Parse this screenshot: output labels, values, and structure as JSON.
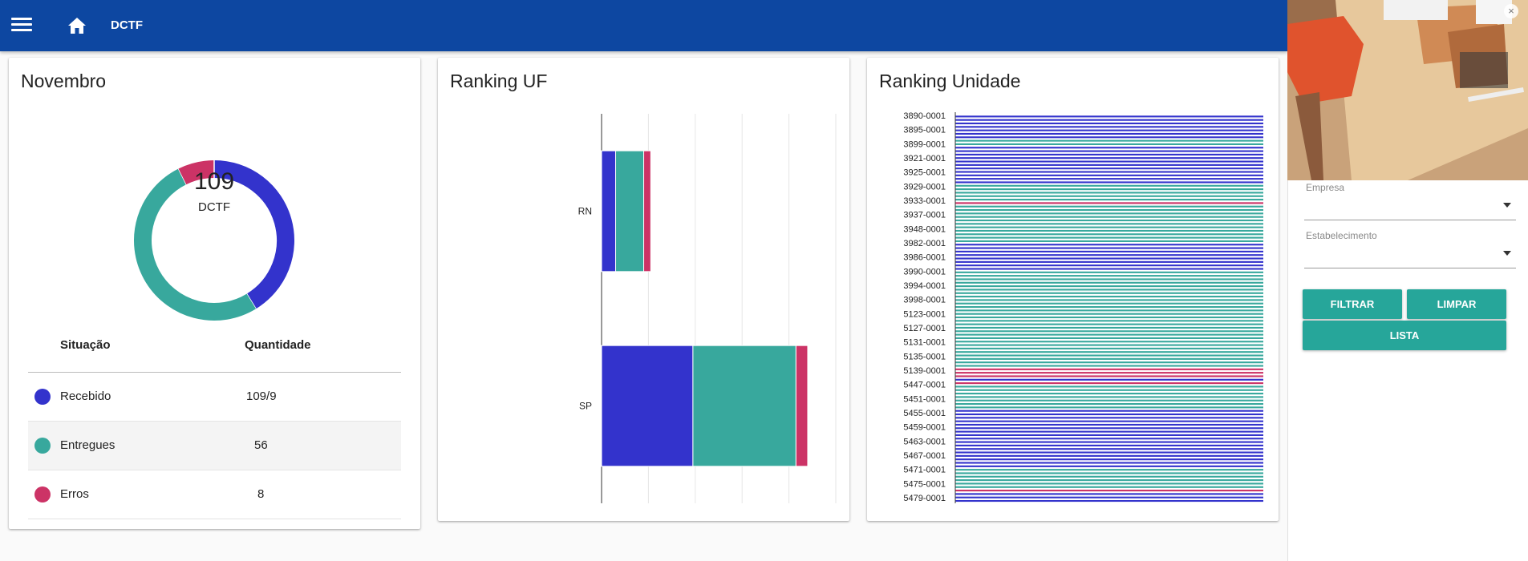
{
  "header": {
    "title": "DCTF",
    "menu_icon": "menu-icon",
    "home_icon": "home-icon"
  },
  "card_month": {
    "title": "Novembro",
    "donut": {
      "center_value": "109",
      "center_label": "DCTF"
    },
    "table": {
      "headers": [
        "Situação",
        "Quantidade"
      ],
      "rows": [
        {
          "label": "Recebido",
          "value": "109/9",
          "color": "#3333cc"
        },
        {
          "label": "Entregues",
          "value": "56",
          "color": "#38a89d"
        },
        {
          "label": "Erros",
          "value": "8",
          "color": "#cc3366"
        }
      ]
    }
  },
  "card_uf": {
    "title": "Ranking UF"
  },
  "card_unidade": {
    "title": "Ranking Unidade"
  },
  "colors": {
    "recebido": "#3333cc",
    "entregues": "#38a89d",
    "erros": "#cc3366",
    "appbar": "#0d47a1",
    "button": "#26a69a"
  },
  "chart_data": [
    {
      "type": "pie",
      "title": "Novembro",
      "categories": [
        "Recebido",
        "Entregues",
        "Erros"
      ],
      "values": [
        45,
        56,
        8
      ],
      "center_text": "109"
    },
    {
      "type": "bar",
      "title": "Ranking UF",
      "orientation": "horizontal",
      "stacked": true,
      "categories": [
        "RN",
        "SP"
      ],
      "series": [
        {
          "name": "Recebido",
          "values": [
            3,
            19.5
          ]
        },
        {
          "name": "Entregues",
          "values": [
            6,
            22
          ]
        },
        {
          "name": "Erros",
          "values": [
            1.5,
            2.5
          ]
        }
      ],
      "xlim": [
        0,
        50
      ],
      "grid": true
    },
    {
      "type": "bar",
      "title": "Ranking Unidade",
      "orientation": "horizontal",
      "stacked": true,
      "tick_labels": [
        "3890-0001",
        "3895-0001",
        "3899-0001",
        "3921-0001",
        "3925-0001",
        "3929-0001",
        "3933-0001",
        "3937-0001",
        "3948-0001",
        "3982-0001",
        "3986-0001",
        "3990-0001",
        "3994-0001",
        "3998-0001",
        "5123-0001",
        "5127-0001",
        "5131-0001",
        "5135-0001",
        "5139-0001",
        "5447-0001",
        "5451-0001",
        "5455-0001",
        "5459-0001",
        "5463-0001",
        "5467-0001",
        "5471-0001",
        "5475-0001",
        "5479-0001"
      ],
      "rows": [
        {
          "status": "Recebido"
        },
        {
          "status": "Recebido"
        },
        {
          "status": "Recebido"
        },
        {
          "status": "Recebido"
        },
        {
          "status": "Recebido"
        },
        {
          "status": "Recebido"
        },
        {
          "status": "Recebido"
        },
        {
          "status": "Entregues"
        },
        {
          "status": "Entregues"
        },
        {
          "status": "Recebido"
        },
        {
          "status": "Recebido"
        },
        {
          "status": "Recebido"
        },
        {
          "status": "Recebido"
        },
        {
          "status": "Recebido"
        },
        {
          "status": "Recebido"
        },
        {
          "status": "Recebido"
        },
        {
          "status": "Recebido"
        },
        {
          "status": "Recebido"
        },
        {
          "status": "Recebido"
        },
        {
          "status": "Recebido"
        },
        {
          "status": "Entregues"
        },
        {
          "status": "Entregues"
        },
        {
          "status": "Entregues"
        },
        {
          "status": "Entregues"
        },
        {
          "status": "Entregues"
        },
        {
          "status": "Erros"
        },
        {
          "status": "Entregues"
        },
        {
          "status": "Entregues"
        },
        {
          "status": "Entregues"
        },
        {
          "status": "Entregues"
        },
        {
          "status": "Entregues"
        },
        {
          "status": "Entregues"
        },
        {
          "status": "Entregues"
        },
        {
          "status": "Entregues"
        },
        {
          "status": "Entregues"
        },
        {
          "status": "Entregues"
        },
        {
          "status": "Entregues"
        },
        {
          "status": "Recebido"
        },
        {
          "status": "Recebido"
        },
        {
          "status": "Recebido"
        },
        {
          "status": "Recebido"
        },
        {
          "status": "Recebido"
        },
        {
          "status": "Recebido"
        },
        {
          "status": "Recebido"
        },
        {
          "status": "Recebido"
        },
        {
          "status": "Entregues"
        },
        {
          "status": "Entregues"
        },
        {
          "status": "Entregues"
        },
        {
          "status": "Entregues"
        },
        {
          "status": "Entregues"
        },
        {
          "status": "Entregues"
        },
        {
          "status": "Entregues"
        },
        {
          "status": "Entregues"
        },
        {
          "status": "Entregues"
        },
        {
          "status": "Entregues"
        },
        {
          "status": "Entregues"
        },
        {
          "status": "Entregues"
        },
        {
          "status": "Entregues"
        },
        {
          "status": "Entregues"
        },
        {
          "status": "Entregues"
        },
        {
          "status": "Entregues"
        },
        {
          "status": "Entregues"
        },
        {
          "status": "Entregues"
        },
        {
          "status": "Entregues"
        },
        {
          "status": "Entregues"
        },
        {
          "status": "Entregues"
        },
        {
          "status": "Entregues"
        },
        {
          "status": "Entregues"
        },
        {
          "status": "Entregues"
        },
        {
          "status": "Entregues"
        },
        {
          "status": "Entregues"
        },
        {
          "status": "Entregues"
        },
        {
          "status": "Entregues"
        },
        {
          "status": "Erros"
        },
        {
          "status": "Erros"
        },
        {
          "status": "Erros"
        },
        {
          "status": "Recebido"
        },
        {
          "status": "Erros"
        },
        {
          "status": "Entregues"
        },
        {
          "status": "Entregues"
        },
        {
          "status": "Entregues"
        },
        {
          "status": "Entregues"
        },
        {
          "status": "Entregues"
        },
        {
          "status": "Entregues"
        },
        {
          "status": "Entregues"
        },
        {
          "status": "Recebido"
        },
        {
          "status": "Recebido"
        },
        {
          "status": "Recebido"
        },
        {
          "status": "Recebido"
        },
        {
          "status": "Recebido"
        },
        {
          "status": "Recebido"
        },
        {
          "status": "Recebido"
        },
        {
          "status": "Recebido"
        },
        {
          "status": "Recebido"
        },
        {
          "status": "Recebido"
        },
        {
          "status": "Recebido"
        },
        {
          "status": "Recebido"
        },
        {
          "status": "Recebido"
        },
        {
          "status": "Recebido"
        },
        {
          "status": "Recebido"
        },
        {
          "status": "Recebido"
        },
        {
          "status": "Recebido"
        },
        {
          "status": "Entregues"
        },
        {
          "status": "Entregues"
        },
        {
          "status": "Entregues"
        },
        {
          "status": "Entregues"
        },
        {
          "status": "Entregues"
        },
        {
          "status": "Entregues"
        },
        {
          "status": "Erros"
        },
        {
          "status": "Recebido"
        },
        {
          "status": "Recebido"
        },
        {
          "status": "Recebido"
        }
      ]
    }
  ],
  "filters": {
    "empresa_label": "Empresa",
    "estabelecimento_label": "Estabelecimento",
    "filtrar": "FILTRAR",
    "limpar": "LIMPAR",
    "lista": "LISTA",
    "close_icon": "close-icon"
  }
}
